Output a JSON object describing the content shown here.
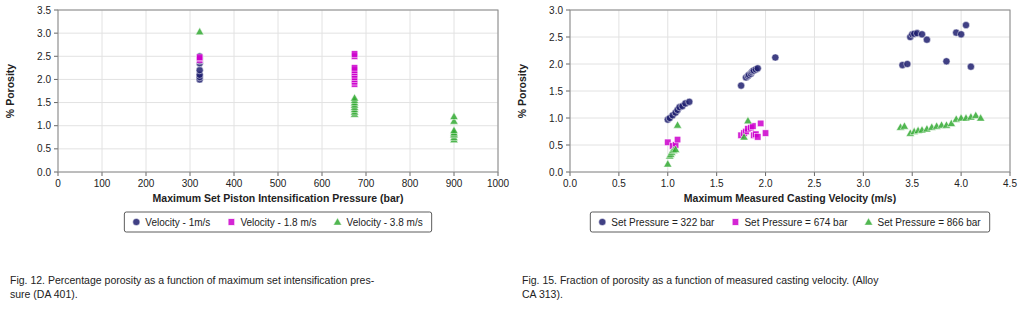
{
  "chart_data": [
    {
      "type": "scatter",
      "x_label": "Maximum Set Piston Intensification Pressure (bar)",
      "y_label": "% Porosity",
      "xlim": [
        0,
        1000
      ],
      "ylim": [
        0.0,
        3.5
      ],
      "xticks": [
        0,
        100,
        200,
        300,
        400,
        500,
        600,
        700,
        800,
        900,
        1000
      ],
      "yticks": [
        {
          "value": 0.0,
          "label": "0.0"
        },
        0.5,
        {
          "value": 1.0,
          "label": "1.0"
        },
        1.5,
        {
          "value": 2.0,
          "label": "2.0"
        },
        2.5,
        {
          "value": 3.0,
          "label": "3.0"
        },
        3.5
      ],
      "grid": true,
      "legend": "bottom",
      "annotations": [
        "Fig. 12.  Percentage porosity as a function of maximum set intensification pres-\nsure (DA 401)."
      ],
      "series": [
        {
          "name": "Velocity - 1m/s",
          "color": "#1f1f6e",
          "marker": "circle",
          "x": [
            322,
            322,
            322,
            322,
            322,
            322,
            322,
            322
          ],
          "values": [
            2.0,
            2.05,
            2.1,
            2.2,
            2.35,
            2.4,
            2.45,
            2.5
          ]
        },
        {
          "name": "Velocity - 1.8 m/s",
          "color": "#cc00cc",
          "marker": "square",
          "x": [
            322,
            322,
            322,
            674,
            674,
            674,
            674,
            674,
            674,
            674,
            674,
            674,
            674
          ],
          "values": [
            2.42,
            2.45,
            2.48,
            1.9,
            1.95,
            2.0,
            2.05,
            2.1,
            2.15,
            2.2,
            2.25,
            2.5,
            2.55
          ]
        },
        {
          "name": "Velocity - 3.8 m/s",
          "color": "#33aa33",
          "marker": "triangle",
          "x": [
            322,
            674,
            674,
            674,
            674,
            674,
            674,
            674,
            674,
            900,
            900,
            900,
            900,
            900,
            900,
            900,
            900
          ],
          "values": [
            3.03,
            1.25,
            1.3,
            1.35,
            1.4,
            1.45,
            1.5,
            1.55,
            1.6,
            0.7,
            0.75,
            0.8,
            0.82,
            0.85,
            0.9,
            1.1,
            1.2
          ]
        }
      ]
    },
    {
      "type": "scatter",
      "x_label": "Maximum Measured Casting Velocity (m/s)",
      "y_label": "% Porosity",
      "xlim": [
        0,
        4.5
      ],
      "ylim": [
        0.0,
        3.0
      ],
      "xticks": [
        {
          "value": 0,
          "label": "0.0"
        },
        0.5,
        {
          "value": 1.0,
          "label": "1.0"
        },
        1.5,
        {
          "value": 2.0,
          "label": "2.0"
        },
        2.5,
        {
          "value": 3.0,
          "label": "3.0"
        },
        3.5,
        {
          "value": 4.0,
          "label": "4.0"
        },
        4.5
      ],
      "yticks": [
        {
          "value": 0.0,
          "label": "0.0"
        },
        0.5,
        {
          "value": 1.0,
          "label": "1.0"
        },
        1.5,
        {
          "value": 2.0,
          "label": "2.0"
        },
        2.5,
        {
          "value": 3.0,
          "label": "3.0"
        }
      ],
      "grid": true,
      "legend": "bottom",
      "annotations": [
        "Fig. 15.  Fraction of porosity as a function of measured casting velocity. (Alloy\nCA 313)."
      ],
      "series": [
        {
          "name": "Set Pressure = 322 bar",
          "color": "#1f1f6e",
          "marker": "circle",
          "x": [
            1.0,
            1.02,
            1.05,
            1.08,
            1.1,
            1.12,
            1.15,
            1.18,
            1.22,
            1.75,
            1.8,
            1.82,
            1.83,
            1.85,
            1.86,
            1.87,
            1.88,
            1.9,
            1.92,
            2.1,
            3.4,
            3.45,
            3.48,
            3.5,
            3.52,
            3.55,
            3.6,
            3.65,
            3.85,
            3.95,
            4.0,
            4.05,
            4.1
          ],
          "values": [
            0.97,
            1.0,
            1.05,
            1.1,
            1.15,
            1.2,
            1.22,
            1.27,
            1.3,
            1.6,
            1.75,
            1.78,
            1.8,
            1.82,
            1.85,
            1.87,
            1.88,
            1.9,
            1.92,
            2.12,
            1.98,
            2.0,
            2.5,
            2.55,
            2.56,
            2.57,
            2.55,
            2.45,
            2.05,
            2.58,
            2.55,
            2.72,
            1.95
          ]
        },
        {
          "name": "Set Pressure = 674 bar",
          "color": "#cc00cc",
          "marker": "square",
          "x": [
            1.0,
            1.05,
            1.08,
            1.1,
            1.75,
            1.78,
            1.8,
            1.82,
            1.85,
            1.87,
            1.88,
            1.9,
            1.92,
            1.95,
            2.0
          ],
          "values": [
            0.55,
            0.48,
            0.5,
            0.6,
            0.68,
            0.72,
            0.75,
            0.8,
            0.82,
            0.85,
            0.68,
            0.7,
            0.65,
            0.9,
            0.72
          ]
        },
        {
          "name": "Set Pressure = 866 bar",
          "color": "#33aa33",
          "marker": "triangle",
          "x": [
            1.0,
            1.02,
            1.03,
            1.04,
            1.06,
            1.08,
            1.1,
            1.78,
            1.82,
            3.38,
            3.42,
            3.48,
            3.52,
            3.56,
            3.6,
            3.65,
            3.7,
            3.75,
            3.8,
            3.85,
            3.9,
            3.95,
            4.0,
            4.05,
            4.1,
            4.15,
            4.2
          ],
          "values": [
            0.15,
            0.3,
            0.33,
            0.37,
            0.4,
            0.42,
            0.87,
            0.65,
            0.95,
            0.83,
            0.85,
            0.72,
            0.75,
            0.77,
            0.78,
            0.8,
            0.83,
            0.85,
            0.87,
            0.87,
            0.9,
            0.98,
            1.0,
            1.0,
            1.02,
            1.05,
            1.0
          ]
        }
      ]
    }
  ]
}
